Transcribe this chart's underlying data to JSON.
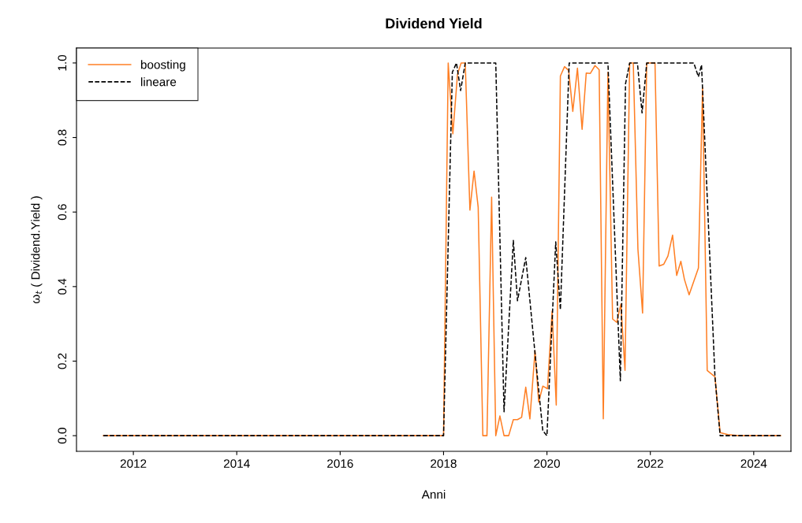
{
  "chart_data": {
    "type": "line",
    "title": "Dividend Yield",
    "xlabel": "Anni",
    "ylabel": "ω$_{t}$ ( Dividend.Yield )",
    "xlim": [
      2010.9,
      2024.72
    ],
    "xticks": [
      2012,
      2014,
      2016,
      2018,
      2020,
      2022,
      2024
    ],
    "ylim": [
      -0.042,
      1.04
    ],
    "yticks": [
      {
        "value": 0,
        "label": "0.0"
      },
      {
        "value": 0.2,
        "label": "0.2"
      },
      {
        "value": 0.4,
        "label": "0.4"
      },
      {
        "value": 0.6,
        "label": "0.6"
      },
      {
        "value": 0.8,
        "label": "0.8"
      },
      {
        "value": 1,
        "label": "1.0"
      }
    ],
    "grid": false,
    "legend": "top left",
    "marker": "none",
    "series": [
      {
        "name": "boosting",
        "color": "#ff7f24",
        "line_style": "solid",
        "x": [
          2011.42,
          2018.0,
          2018.09,
          2018.18,
          2018.27,
          2018.34,
          2018.42,
          2018.51,
          2018.59,
          2018.67,
          2018.76,
          2018.84,
          2018.93,
          2019.01,
          2019.09,
          2019.17,
          2019.26,
          2019.35,
          2019.43,
          2019.51,
          2019.59,
          2019.67,
          2019.77,
          2019.84,
          2019.92,
          2020.01,
          2020.1,
          2020.18,
          2020.26,
          2020.34,
          2020.42,
          2020.5,
          2020.59,
          2020.68,
          2020.76,
          2020.84,
          2020.93,
          2021.01,
          2021.09,
          2021.18,
          2021.27,
          2021.35,
          2021.43,
          2021.51,
          2021.6,
          2021.67,
          2021.76,
          2021.85,
          2021.93,
          2022.09,
          2022.17,
          2022.26,
          2022.34,
          2022.43,
          2022.51,
          2022.59,
          2022.66,
          2022.75,
          2022.93,
          2023.01,
          2023.1,
          2023.25,
          2023.35,
          2023.5,
          2023.7,
          2024.52
        ],
        "values": [
          0,
          0,
          1.0,
          0.81,
          0.97,
          1.0,
          1.0,
          0.605,
          0.71,
          0.613,
          0,
          0,
          0.64,
          0,
          0.053,
          0,
          0,
          0.043,
          0.043,
          0.049,
          0.13,
          0.045,
          0.228,
          0.09,
          0.133,
          0.126,
          0.334,
          0.082,
          0.965,
          0.99,
          0.98,
          0.87,
          0.986,
          0.822,
          0.973,
          0.972,
          0.993,
          0.982,
          0.045,
          0.975,
          0.313,
          0.304,
          0.353,
          0.175,
          1.0,
          1.0,
          0.5,
          0.329,
          1.0,
          1.0,
          0.455,
          0.46,
          0.482,
          0.538,
          0.43,
          0.468,
          0.419,
          0.378,
          0.45,
          0.933,
          0.175,
          0.158,
          0.008,
          0.003,
          0,
          0
        ]
      },
      {
        "name": "lineare",
        "color": "#000000",
        "line_style": "dashed",
        "x": [
          2011.42,
          2018.0,
          2018.17,
          2018.25,
          2018.33,
          2018.42,
          2019.01,
          2019.17,
          2019.35,
          2019.43,
          2019.59,
          2019.77,
          2019.92,
          2020.0,
          2020.17,
          2020.26,
          2020.43,
          2021.18,
          2021.42,
          2021.52,
          2021.6,
          2021.75,
          2021.84,
          2021.93,
          2022.84,
          2022.93,
          2022.99,
          2023.25,
          2023.35,
          2024.52
        ],
        "values": [
          0,
          0,
          0.975,
          1.0,
          0.926,
          1.0,
          1.0,
          0.064,
          0.524,
          0.362,
          0.478,
          0.22,
          0.013,
          0,
          0.52,
          0.338,
          1.0,
          1.0,
          0.147,
          0.944,
          1.0,
          1.0,
          0.866,
          1.0,
          1.0,
          0.963,
          0.995,
          0.158,
          0,
          0
        ]
      }
    ]
  }
}
